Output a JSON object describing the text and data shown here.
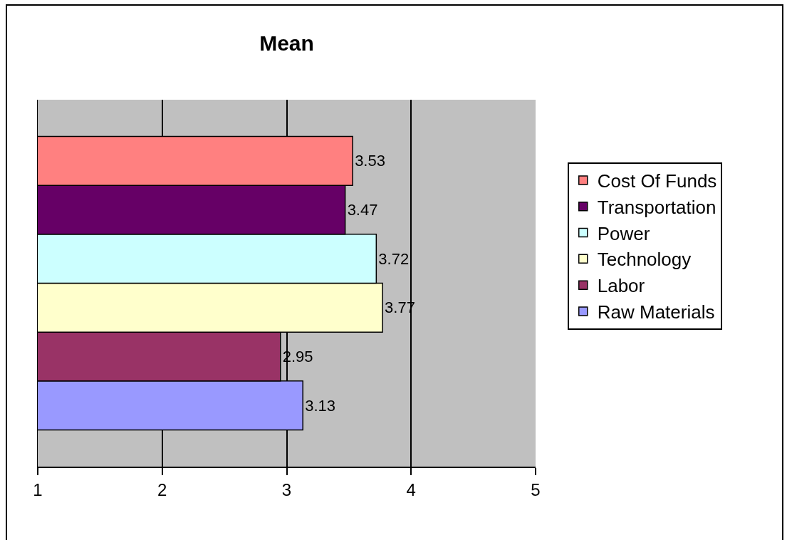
{
  "chart_data": {
    "type": "bar",
    "orientation": "horizontal",
    "title": "Mean",
    "categories": [
      null
    ],
    "series": [
      {
        "name": "Cost Of Funds",
        "color": "#ff8080",
        "values": [
          3.53
        ]
      },
      {
        "name": "Transportation",
        "color": "#660066",
        "values": [
          3.47
        ]
      },
      {
        "name": "Power",
        "color": "#ccffff",
        "values": [
          3.72
        ]
      },
      {
        "name": "Technology",
        "color": "#ffffcc",
        "values": [
          3.77
        ]
      },
      {
        "name": "Labor",
        "color": "#993366",
        "values": [
          2.95
        ]
      },
      {
        "name": "Raw Materials",
        "color": "#9999ff",
        "values": [
          3.13
        ]
      }
    ],
    "xlim": [
      1,
      5
    ],
    "xticks": [
      1,
      2,
      3,
      4,
      5
    ],
    "grid": "x",
    "legend": "right",
    "data_labels": true,
    "tick_labels": "x"
  }
}
